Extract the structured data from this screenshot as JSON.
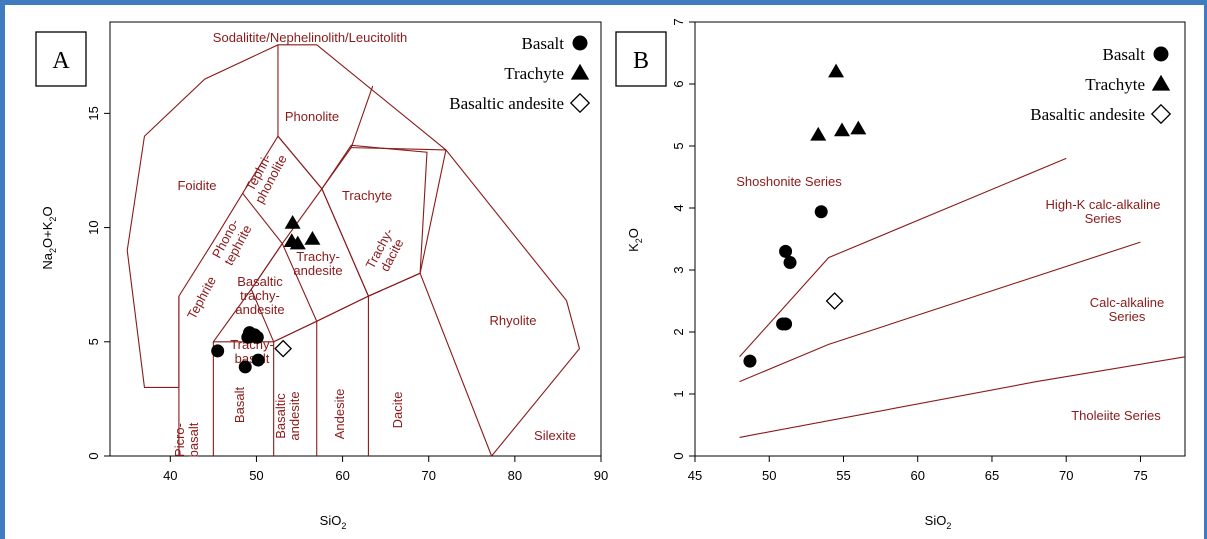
{
  "chart_data": [
    {
      "panel": "A",
      "type": "scatter",
      "xlabel": "SiO2",
      "ylabel": "Na2O+K2O",
      "xlim": [
        33,
        90
      ],
      "ylim": [
        0,
        19
      ],
      "xticks": [
        40,
        50,
        60,
        70,
        80,
        90
      ],
      "yticks": [
        0,
        5,
        10,
        15
      ],
      "legend": {
        "placement": "top-right",
        "entries": [
          "Basalt",
          "Trachyte",
          "Basaltic andesite"
        ]
      },
      "fields": {
        "sodalitite": "Sodalitite/Nephelinolith/Leucitolith",
        "foidite": "Foidite",
        "phonolite": "Phonolite",
        "tephriphonolite": [
          "Tephri-",
          "phonolite"
        ],
        "phonotephrite": [
          "Phono-",
          "tephrite"
        ],
        "tephrite": "Tephrite",
        "trachyte": "Trachyte",
        "trachyandesite": [
          "Trachy-",
          "andesite"
        ],
        "basaltic_trachyandesite": [
          "Basaltic",
          "trachy-",
          "andesite"
        ],
        "trachybasalt": [
          "Trachy-",
          "basalt"
        ],
        "trachydacite": [
          "Trachy-",
          "dacite"
        ],
        "picrobasalt": [
          "Picro-",
          "basalt"
        ],
        "basalt": "Basalt",
        "basaltic_andesite": [
          "Basaltic",
          "andesite"
        ],
        "andesite": "Andesite",
        "dacite": "Dacite",
        "rhyolite": "Rhyolite",
        "silexite": "Silexite"
      },
      "series": [
        {
          "name": "Basalt",
          "marker": "filled-circle",
          "points": [
            [
              45.5,
              4.6
            ],
            [
              48.7,
              3.9
            ],
            [
              49.0,
              5.2
            ],
            [
              49.2,
              5.4
            ],
            [
              49.8,
              5.3
            ],
            [
              50.1,
              5.2
            ],
            [
              50.2,
              4.2
            ]
          ]
        },
        {
          "name": "Trachyte",
          "marker": "filled-triangle",
          "points": [
            [
              54.2,
              10.2
            ],
            [
              54.1,
              9.4
            ],
            [
              54.8,
              9.3
            ],
            [
              56.5,
              9.5
            ]
          ]
        },
        {
          "name": "Basaltic andesite",
          "marker": "open-diamond",
          "points": [
            [
              53.1,
              4.7
            ]
          ]
        }
      ]
    },
    {
      "panel": "B",
      "type": "scatter",
      "xlabel": "SiO2",
      "ylabel": "K2O",
      "xlim": [
        45,
        78
      ],
      "ylim": [
        0,
        7
      ],
      "xticks": [
        45,
        50,
        55,
        60,
        65,
        70,
        75
      ],
      "yticks": [
        0,
        1,
        2,
        3,
        4,
        5,
        6,
        7
      ],
      "legend": {
        "placement": "top-right",
        "entries": [
          "Basalt",
          "Trachyte",
          "Basaltic andesite"
        ]
      },
      "fields": {
        "shoshonite": "Shoshonite Series",
        "highk": [
          "High-K calc-alkaline",
          "Series"
        ],
        "calcalkaline": [
          "Calc-alkaline",
          "Series"
        ],
        "tholeiite": "Tholeiite Series"
      },
      "series": [
        {
          "name": "Basalt",
          "marker": "filled-circle",
          "points": [
            [
              48.7,
              1.53
            ],
            [
              50.9,
              2.13
            ],
            [
              51.1,
              2.13
            ],
            [
              51.1,
              3.3
            ],
            [
              51.4,
              3.12
            ],
            [
              53.5,
              3.94
            ]
          ]
        },
        {
          "name": "Trachyte",
          "marker": "filled-triangle",
          "points": [
            [
              53.3,
              5.18
            ],
            [
              54.5,
              6.2
            ],
            [
              54.9,
              5.25
            ],
            [
              56.0,
              5.28
            ]
          ]
        },
        {
          "name": "Basaltic andesite",
          "marker": "open-diamond",
          "points": [
            [
              54.4,
              2.5
            ]
          ]
        }
      ]
    }
  ],
  "panels": {
    "a_label": "A",
    "b_label": "B"
  }
}
